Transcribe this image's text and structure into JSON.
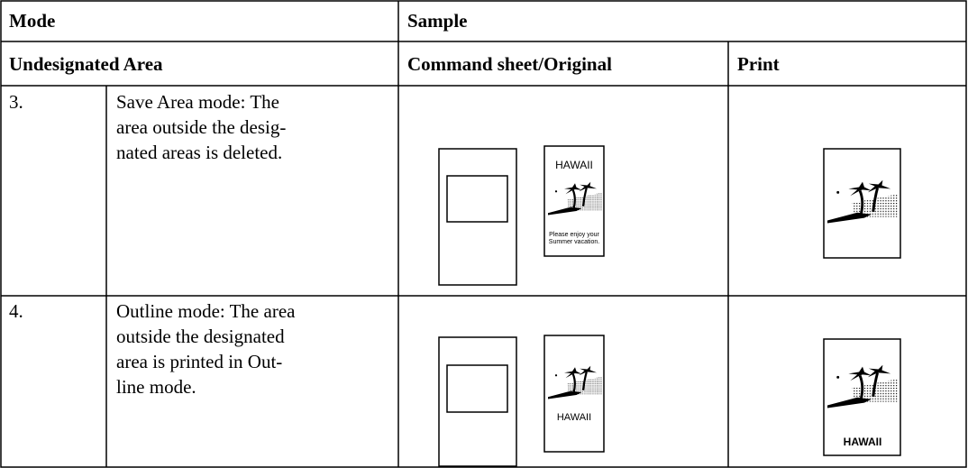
{
  "header": {
    "mode": "Mode",
    "sample": "Sample"
  },
  "subheader": {
    "area": "Undesignated Area",
    "original": "Command sheet/Original",
    "print": "Print"
  },
  "rows": [
    {
      "number": "3.",
      "description": [
        "Save Area mode: The",
        "area outside the desig-",
        "nated areas is deleted."
      ],
      "original_texts": [
        "HAWAII",
        "Please enjoy your",
        "Summer vacation."
      ]
    },
    {
      "number": "4.",
      "description": [
        "Outline mode: The area",
        "outside the designated",
        "area is printed in Out-",
        "line mode."
      ],
      "original_texts": [
        "HAWAII"
      ],
      "print_text": "HAWAII"
    }
  ]
}
